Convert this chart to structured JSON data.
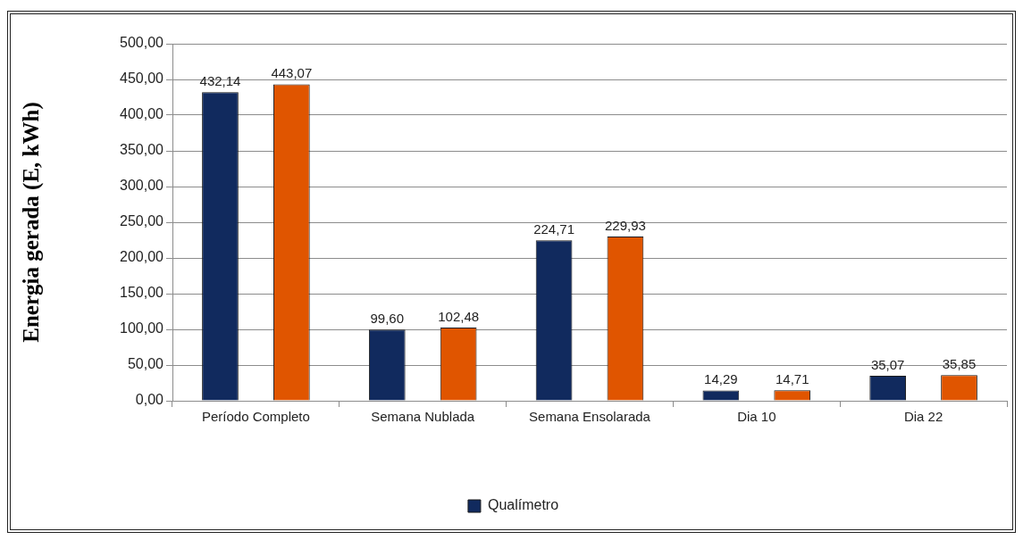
{
  "chart_data": {
    "type": "bar",
    "ylabel": "Energia gerada (E, kWh)",
    "categories": [
      "Período Completo",
      "Semana Nublada",
      "Semana Ensolarada",
      "Dia 10",
      "Dia 22"
    ],
    "series": [
      {
        "name": "Qualímetro",
        "color": "#112a5e",
        "values": [
          432.14,
          99.6,
          224.71,
          14.29,
          35.07
        ],
        "value_labels": [
          "432,14",
          "99,60",
          "224,71",
          "14,29",
          "35,07"
        ]
      },
      {
        "color": "#e05500",
        "values": [
          443.07,
          102.48,
          229.93,
          14.71,
          35.85
        ],
        "value_labels": [
          "443,07",
          "102,48",
          "229,93",
          "14,71",
          "35,85"
        ]
      }
    ],
    "ylim": [
      0,
      500
    ],
    "yticks": [
      {
        "value": 0,
        "label": "0,00"
      },
      {
        "value": 50,
        "label": "50,00"
      },
      {
        "value": 100,
        "label": "100,00"
      },
      {
        "value": 150,
        "label": "150,00"
      },
      {
        "value": 200,
        "label": "200,00"
      },
      {
        "value": 250,
        "label": "250,00"
      },
      {
        "value": 300,
        "label": "300,00"
      },
      {
        "value": 350,
        "label": "350,00"
      },
      {
        "value": 400,
        "label": "400,00"
      },
      {
        "value": 450,
        "label": "450,00"
      },
      {
        "value": 500,
        "label": "500,00"
      }
    ],
    "grid": "y",
    "legend": "bottom"
  }
}
